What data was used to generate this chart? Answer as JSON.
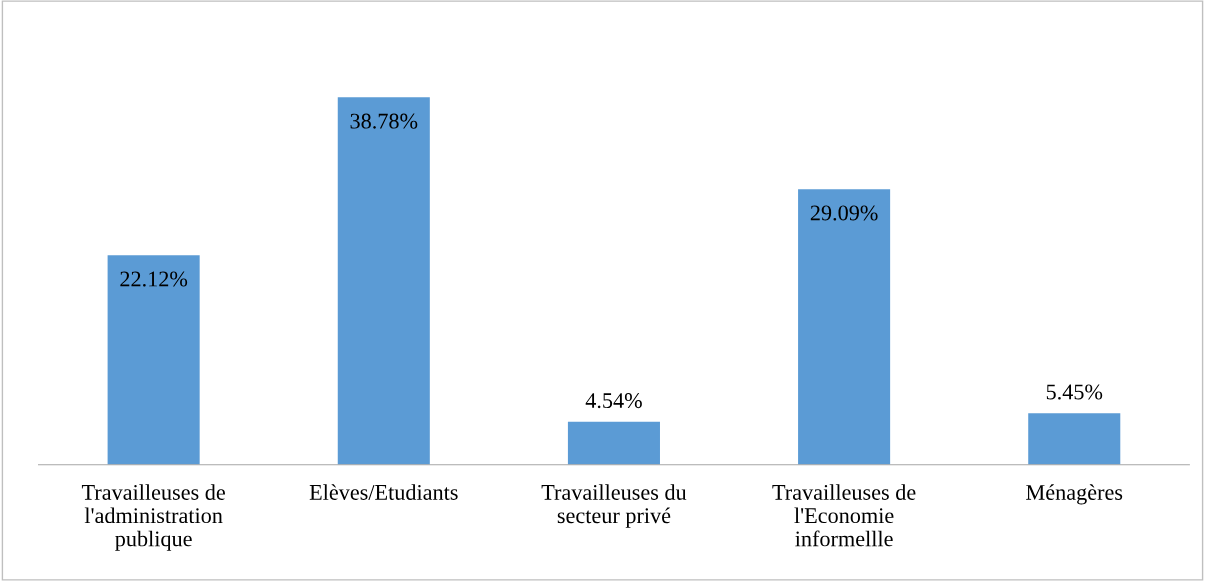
{
  "chart_data": {
    "type": "bar",
    "categories": [
      "Travailleuses de l'administration publique",
      "Elèves/Etudiants",
      "Travailleuses du secteur privé",
      "Travailleuses de l'Economie informellle",
      "Ménagères"
    ],
    "values": [
      22.12,
      38.78,
      4.54,
      29.09,
      5.45
    ],
    "value_labels": [
      "22.12%",
      "38.78%",
      "4.54%",
      "29.09%",
      "5.45%"
    ],
    "color": "#5b9bd5",
    "grid": false,
    "legend": false
  }
}
